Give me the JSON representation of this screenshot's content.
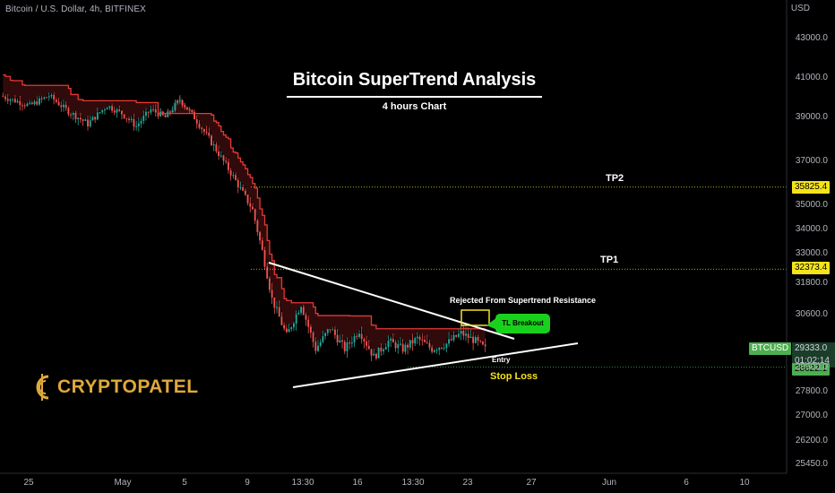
{
  "legend": "Bitcoin / U.S. Dollar, 4h, BITFINEX",
  "title": "Bitcoin SuperTrend Analysis",
  "subtitle": "4 hours Chart",
  "logo_text": "CRYPTOPATEL",
  "currency_label": "USD",
  "annotations": {
    "tp2": "TP2",
    "tp1": "TP1",
    "rejected": "Rejected From Supertrend Resistance",
    "breakout": "TL Breakout",
    "entry": "Entry",
    "stop_loss": "Stop Loss"
  },
  "price_tags": {
    "tp2": "35825.4",
    "tp1": "32373.4",
    "symbol": "BTCUSD",
    "current": "29333.0",
    "countdown": "01:02:14",
    "stop": "28622.1"
  },
  "colors": {
    "up": "#26a69a",
    "down": "#ef5350",
    "supertrend": "#e53935",
    "fill": "#3a0d0d",
    "tag_yellow": "#f5e31b",
    "tag_green": "#4caf50",
    "breakout_green": "#19d11c"
  },
  "chart_data": {
    "type": "candlestick",
    "symbol": "BTCUSD",
    "timeframe": "4h",
    "y_axis": {
      "ticks": [
        43000.0,
        41000.0,
        39000.0,
        37000.0,
        35000.0,
        34000.0,
        33000.0,
        31800.0,
        30600.0,
        28600.0,
        27800.0,
        27000.0,
        26200.0,
        25450.0
      ],
      "tick_labels": [
        "43000.0",
        "41000.0",
        "39000.0",
        "37000.0",
        "35000.0",
        "34000.0",
        "33000.0",
        "31800.0",
        "30600.0",
        "28600.0",
        "27800.0",
        "27000.0",
        "26200.0",
        "25450.0"
      ]
    },
    "x_axis": {
      "tick_labels": [
        "25",
        "May",
        "5",
        "9",
        "13:30",
        "16",
        "13:30",
        "23",
        "27",
        "Jun",
        "6",
        "10"
      ]
    },
    "levels": [
      {
        "name": "TP2",
        "price": 35825.4
      },
      {
        "name": "TP1",
        "price": 32373.4
      },
      {
        "name": "Stop Loss",
        "price": 28622.1
      }
    ],
    "current_price": 29333.0,
    "series": [
      {
        "name": "price",
        "description": "4h candles from late April to May 24",
        "anchors": [
          [
            0,
            40100
          ],
          [
            12,
            39600
          ],
          [
            20,
            40100
          ],
          [
            28,
            39300
          ],
          [
            36,
            38700
          ],
          [
            44,
            39600
          ],
          [
            50,
            39200
          ],
          [
            56,
            38600
          ],
          [
            62,
            39400
          ],
          [
            68,
            39000
          ],
          [
            74,
            39900
          ],
          [
            80,
            39000
          ],
          [
            88,
            37700
          ],
          [
            96,
            36300
          ],
          [
            104,
            34800
          ],
          [
            108,
            33100
          ],
          [
            112,
            31200
          ],
          [
            118,
            29800
          ],
          [
            124,
            31000
          ],
          [
            130,
            29300
          ],
          [
            136,
            30100
          ],
          [
            142,
            29300
          ],
          [
            148,
            30000
          ],
          [
            154,
            29000
          ],
          [
            160,
            29600
          ],
          [
            166,
            29300
          ],
          [
            172,
            29700
          ],
          [
            178,
            29300
          ],
          [
            184,
            29500
          ],
          [
            190,
            29900
          ],
          [
            196,
            29600
          ],
          [
            200,
            29300
          ]
        ]
      },
      {
        "name": "supertrend",
        "description": "SuperTrend resistance stepping down above price"
      }
    ]
  }
}
